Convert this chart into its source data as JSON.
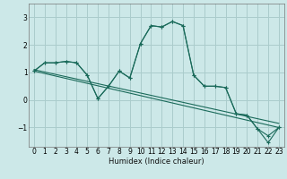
{
  "xlabel": "Humidex (Indice chaleur)",
  "bg_color": "#cce8e8",
  "grid_color": "#aacccc",
  "line_color": "#1a6a5a",
  "xlim": [
    -0.5,
    23.5
  ],
  "ylim": [
    -1.7,
    3.5
  ],
  "yticks": [
    -1,
    0,
    1,
    2,
    3
  ],
  "xticks": [
    0,
    1,
    2,
    3,
    4,
    5,
    6,
    7,
    8,
    9,
    10,
    11,
    12,
    13,
    14,
    15,
    16,
    17,
    18,
    19,
    20,
    21,
    22,
    23
  ],
  "line1_x": [
    0,
    1,
    2,
    3,
    4,
    5,
    6,
    7,
    8,
    9,
    10,
    11,
    12,
    13,
    14,
    15,
    16,
    17,
    18,
    19,
    20,
    21,
    22,
    23
  ],
  "line1_y": [
    1.05,
    1.35,
    1.35,
    1.4,
    1.35,
    0.9,
    0.05,
    0.5,
    1.05,
    0.8,
    2.05,
    2.7,
    2.65,
    2.85,
    2.7,
    0.9,
    0.5,
    0.5,
    0.45,
    -0.5,
    -0.55,
    -1.05,
    -1.55,
    -1.0
  ],
  "line2_x": [
    0,
    1,
    2,
    3,
    4,
    5,
    6,
    7,
    8,
    9,
    10,
    11,
    12,
    13,
    14,
    15,
    16,
    17,
    18,
    19,
    20,
    21,
    22,
    23
  ],
  "line2_y": [
    1.05,
    1.35,
    1.35,
    1.4,
    1.35,
    0.9,
    0.05,
    0.5,
    1.05,
    0.8,
    2.05,
    2.7,
    2.65,
    2.85,
    2.7,
    0.9,
    0.5,
    0.5,
    0.45,
    -0.5,
    -0.55,
    -1.05,
    -1.3,
    -1.0
  ],
  "trend1_x": [
    0,
    23
  ],
  "trend1_y": [
    1.05,
    -1.0
  ],
  "trend2_x": [
    0,
    23
  ],
  "trend2_y": [
    1.1,
    -0.85
  ]
}
